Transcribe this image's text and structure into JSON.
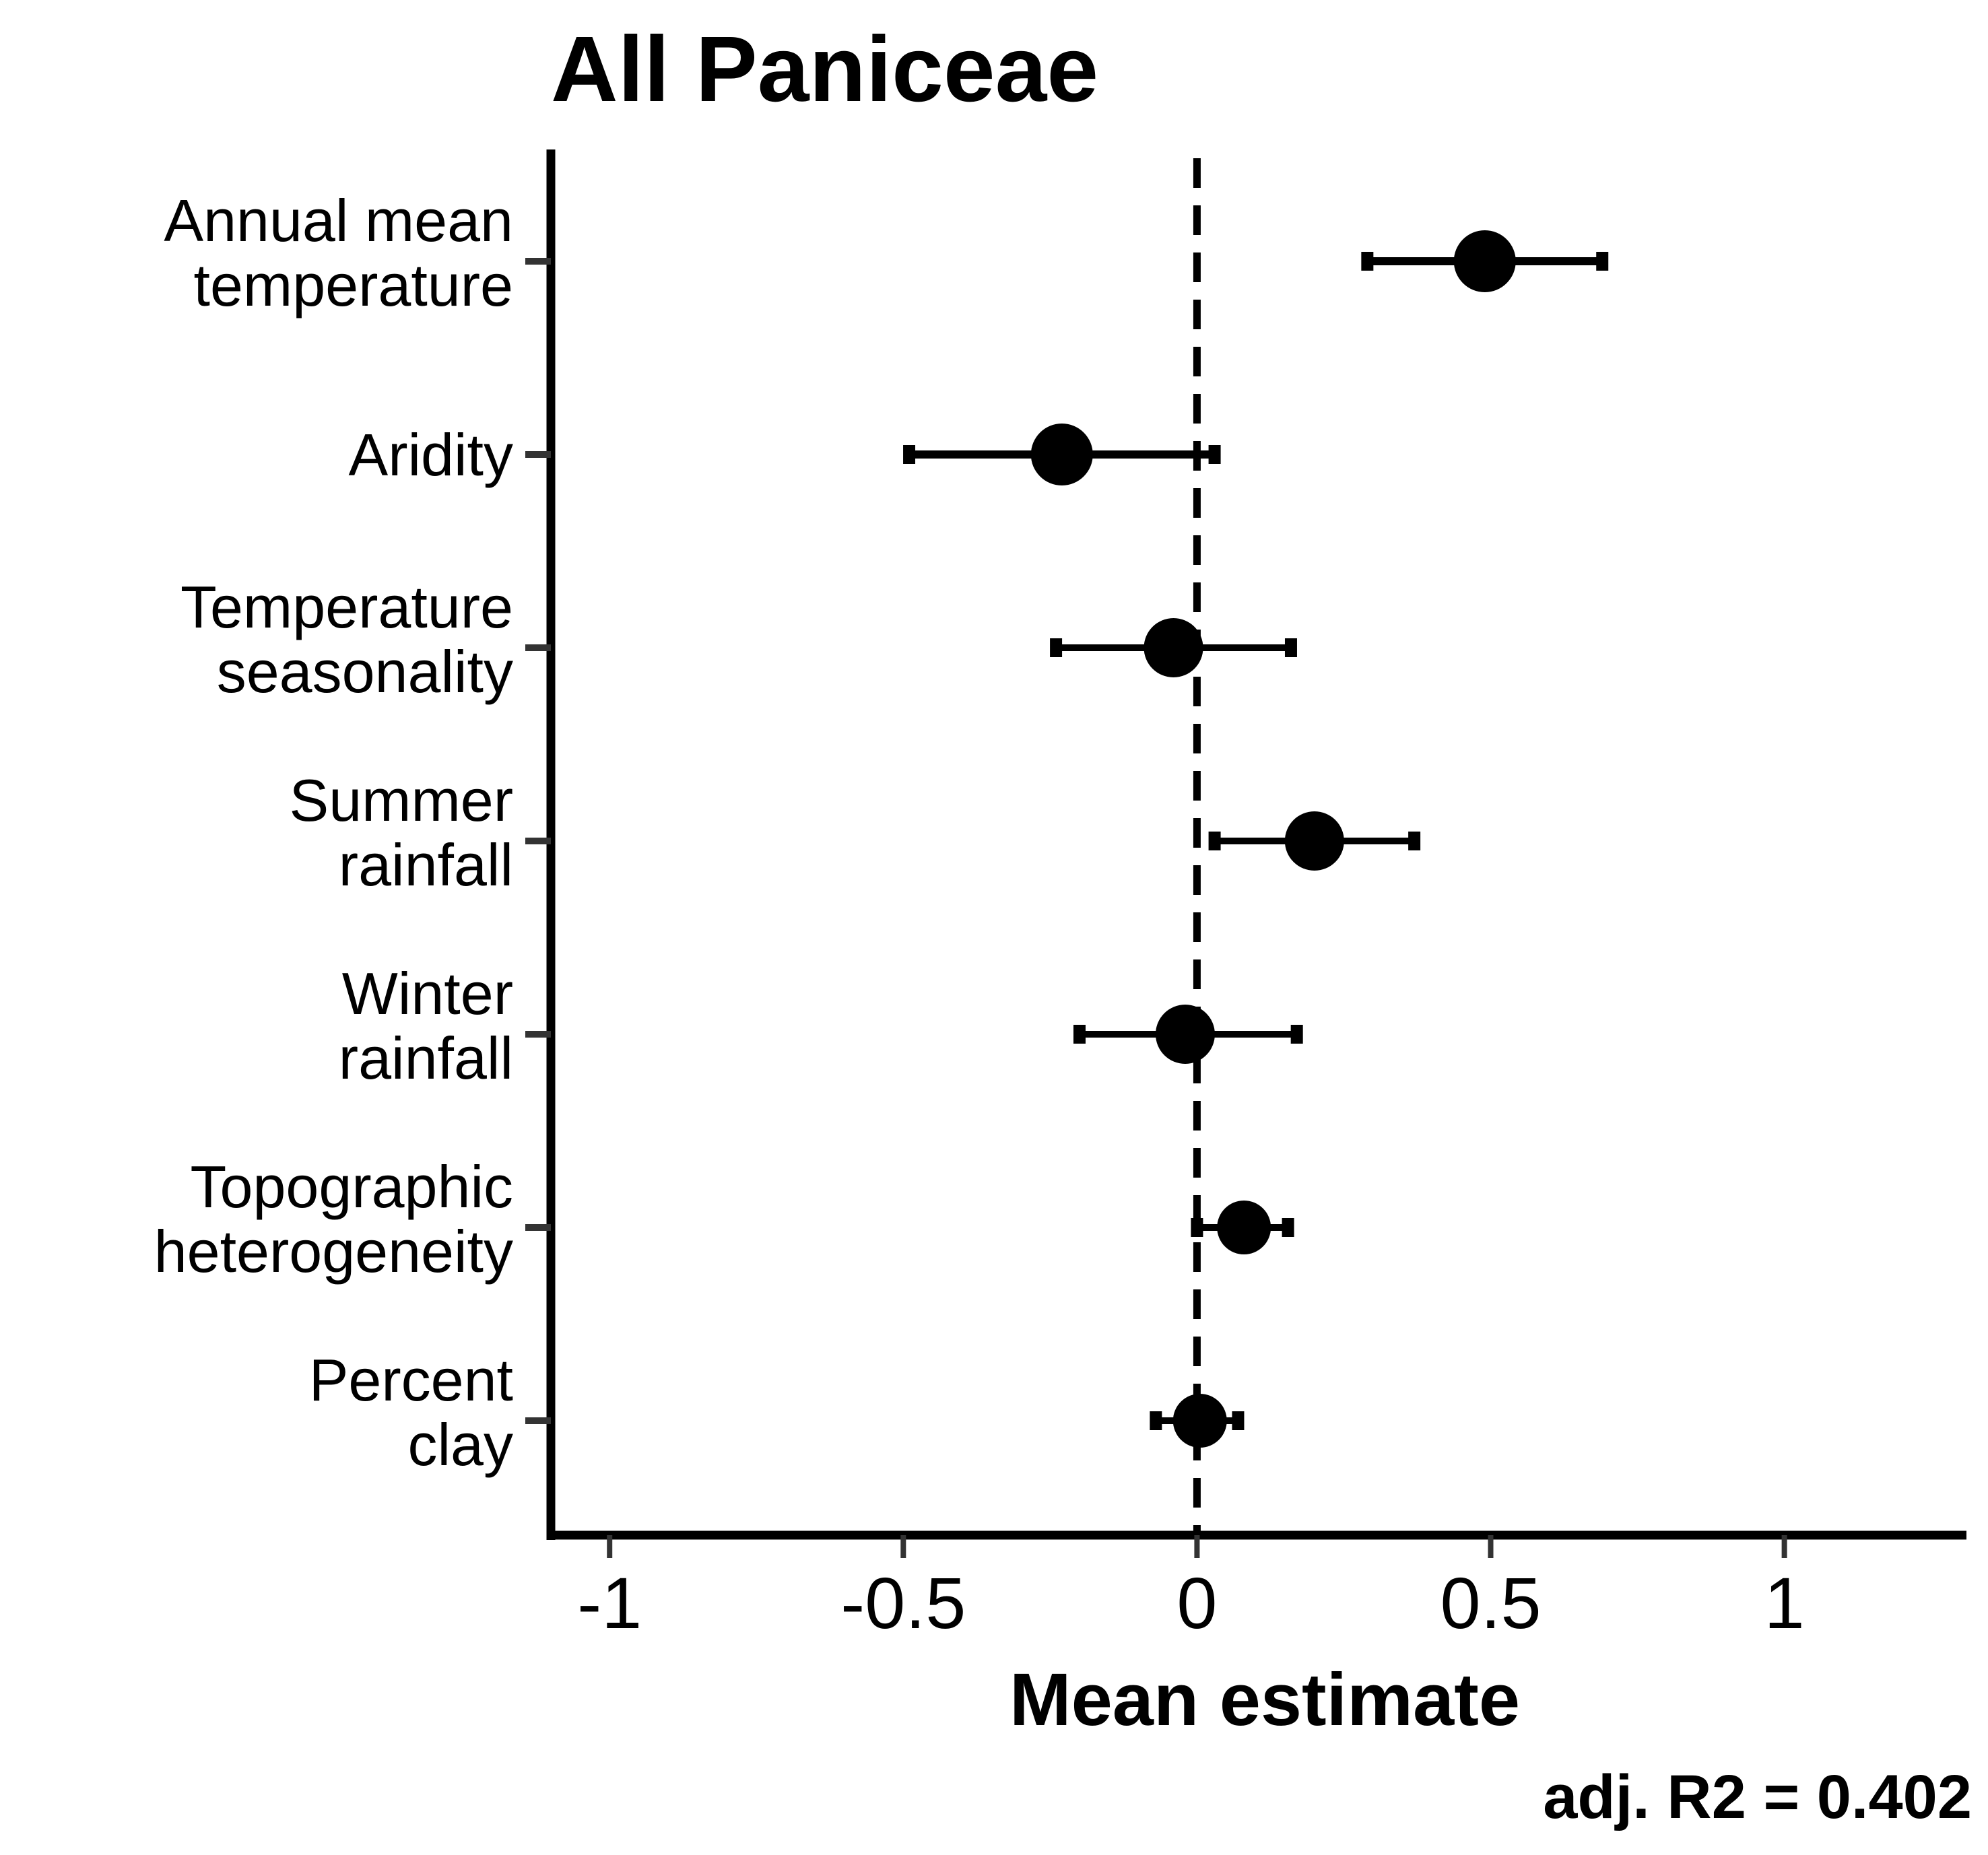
{
  "chart_data": {
    "type": "scatter",
    "title": "All Paniceae",
    "xlabel": "Mean estimate",
    "ylabel": "",
    "xlim": [
      -1.1,
      1.31
    ],
    "xticks": [
      -1,
      -0.5,
      0,
      0.5,
      1
    ],
    "xtick_labels": [
      "-1",
      "-0.5",
      "0",
      "0.5",
      "1"
    ],
    "reference_line": 0,
    "note": "adj. R2 = 0.402",
    "colors": {
      "points": "#000000",
      "reference_line": "#000000"
    },
    "points": [
      {
        "label_lines": [
          "Annual mean",
          "temperature"
        ],
        "estimate": 0.49,
        "lower": 0.29,
        "upper": 0.69,
        "size": "large"
      },
      {
        "label_lines": [
          "Aridity"
        ],
        "estimate": -0.23,
        "lower": -0.49,
        "upper": 0.03,
        "size": "large"
      },
      {
        "label_lines": [
          "Temperature",
          "seasonality"
        ],
        "estimate": -0.04,
        "lower": -0.24,
        "upper": 0.16,
        "size": "medium"
      },
      {
        "label_lines": [
          "Summer",
          "rainfall"
        ],
        "estimate": 0.2,
        "lower": 0.03,
        "upper": 0.37,
        "size": "medium"
      },
      {
        "label_lines": [
          "Winter",
          "rainfall"
        ],
        "estimate": -0.02,
        "lower": -0.2,
        "upper": 0.17,
        "size": "medium"
      },
      {
        "label_lines": [
          "Topographic",
          "heterogeneity"
        ],
        "estimate": 0.08,
        "lower": 0.0,
        "upper": 0.155,
        "size": "small"
      },
      {
        "label_lines": [
          "Percent",
          "clay"
        ],
        "estimate": 0.005,
        "lower": -0.07,
        "upper": 0.07,
        "size": "small"
      }
    ]
  }
}
